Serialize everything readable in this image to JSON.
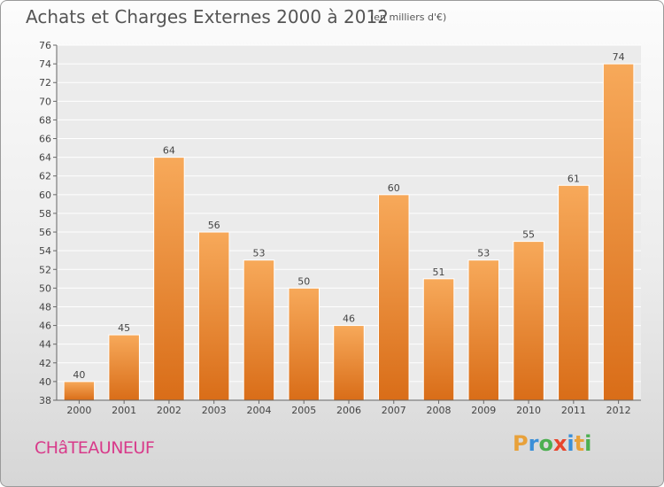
{
  "title": "Achats et Charges Externes 2000 à 2012",
  "unit_note": "(en milliers d'€)",
  "city": "CHâTEAUNEUF",
  "logo": {
    "letters": [
      "P",
      "r",
      "o",
      "x",
      "i",
      "t",
      "i"
    ],
    "colors": [
      "#e8a13a",
      "#3a8fd8",
      "#4caf50",
      "#e8452c",
      "#3a8fd8",
      "#e8a13a",
      "#4caf50"
    ]
  },
  "chart_data": {
    "type": "bar",
    "categories": [
      "2000",
      "2001",
      "2002",
      "2003",
      "2004",
      "2005",
      "2006",
      "2007",
      "2008",
      "2009",
      "2010",
      "2011",
      "2012"
    ],
    "values": [
      40,
      45,
      64,
      56,
      53,
      50,
      46,
      60,
      51,
      53,
      55,
      61,
      74
    ],
    "data_labels": [
      "40",
      "45",
      "64",
      "56",
      "53",
      "50",
      "46",
      "60",
      "51",
      "53",
      "55",
      "61",
      "74"
    ],
    "title": "Achats et Charges Externes 2000 à 2012",
    "xlabel": "",
    "ylabel": "",
    "ylim": [
      38,
      76
    ],
    "yticks": [
      38,
      40,
      42,
      44,
      46,
      48,
      50,
      52,
      54,
      56,
      58,
      60,
      62,
      64,
      66,
      68,
      70,
      72,
      74,
      76
    ],
    "grid": true,
    "bar_color": "#f0913a"
  }
}
